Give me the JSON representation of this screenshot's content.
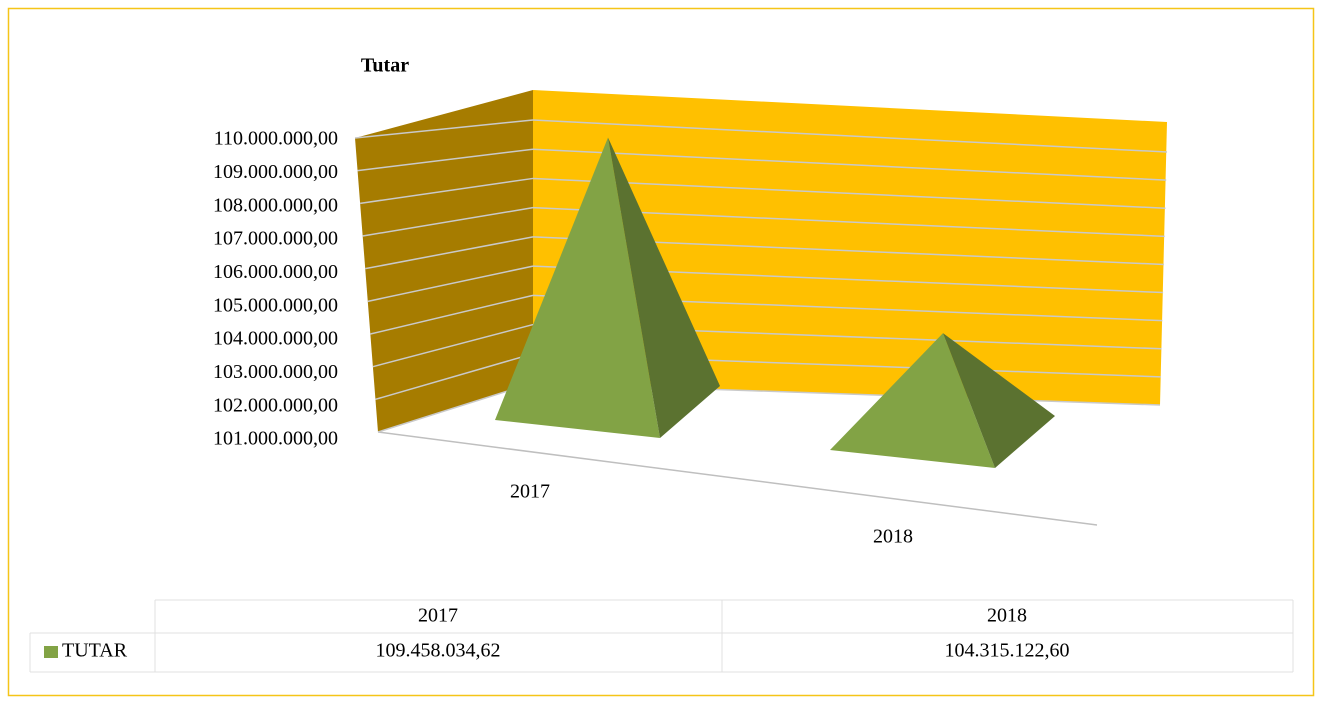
{
  "chart_data": {
    "type": "pyramid",
    "title": "Tutar",
    "categories": [
      "2017",
      "2018"
    ],
    "series": [
      {
        "name": "TUTAR",
        "color": "#82a345",
        "values": [
          109458034.62,
          104315122.6
        ],
        "value_labels": [
          "109.458.034,62",
          "104.315.122,60"
        ]
      }
    ],
    "ylim": [
      101000000,
      110000000
    ],
    "yticks": [
      {
        "value": 101000000,
        "label": "101.000.000,00"
      },
      {
        "value": 102000000,
        "label": "102.000.000,00"
      },
      {
        "value": 103000000,
        "label": "103.000.000,00"
      },
      {
        "value": 104000000,
        "label": "104.000.000,00"
      },
      {
        "value": 105000000,
        "label": "105.000.000,00"
      },
      {
        "value": 106000000,
        "label": "106.000.000,00"
      },
      {
        "value": 107000000,
        "label": "107.000.000,00"
      },
      {
        "value": 108000000,
        "label": "108.000.000,00"
      },
      {
        "value": 109000000,
        "label": "109.000.000,00"
      },
      {
        "value": 110000000,
        "label": "110.000.000,00"
      }
    ],
    "grid": true,
    "wall_color": "#ffc000",
    "side_wall_color": "#a67c00",
    "legend": "table"
  }
}
